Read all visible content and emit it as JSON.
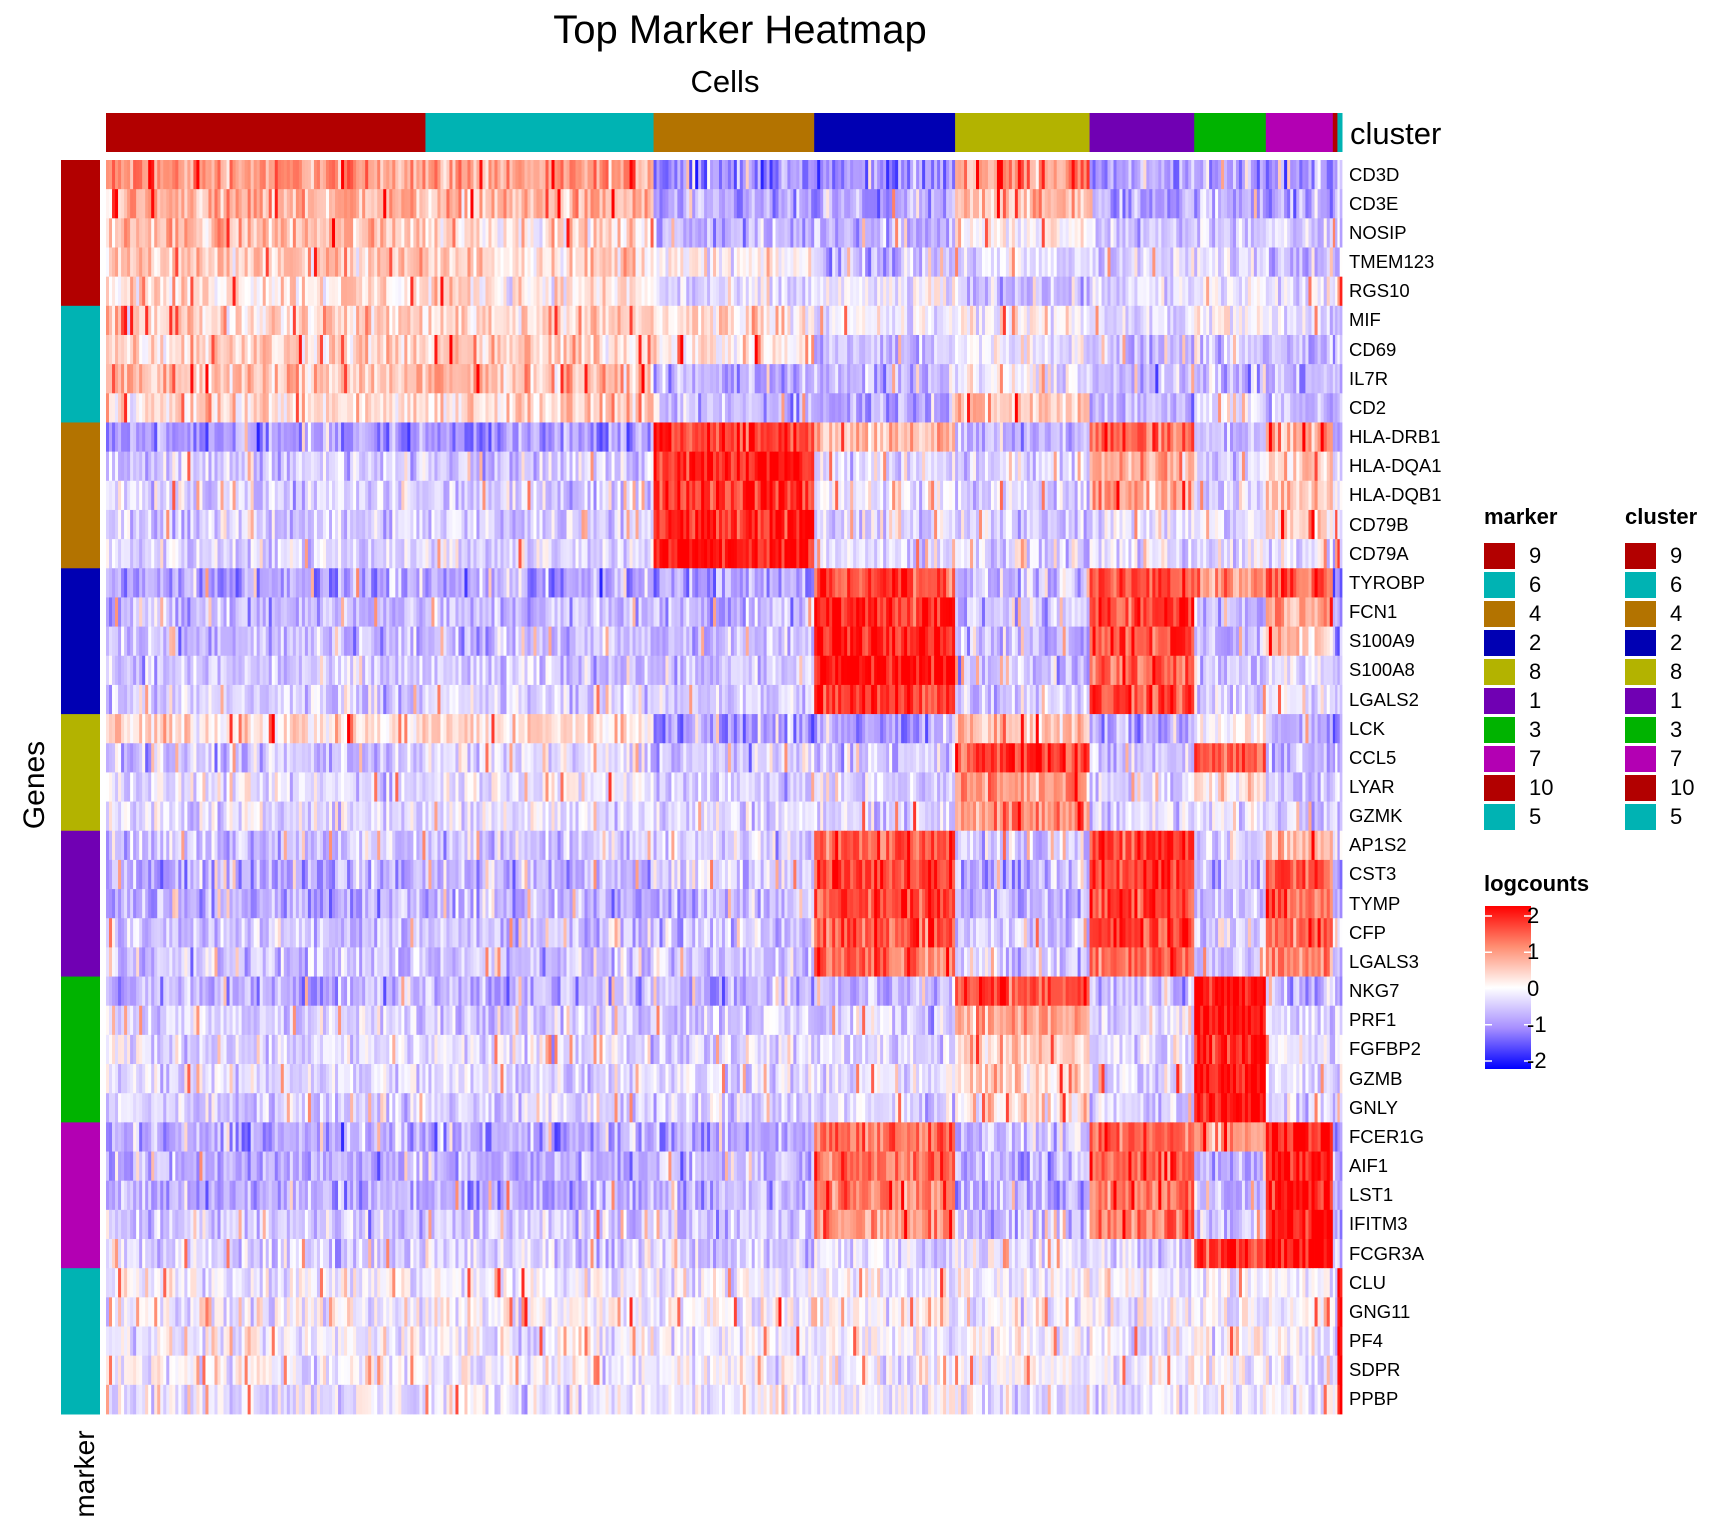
{
  "chart_data": {
    "type": "heatmap",
    "title": "Top Marker Heatmap",
    "xlabel": "Cells",
    "ylabel": "Genes",
    "column_annotation_label": "cluster",
    "row_annotation_label": "marker",
    "value_label": "logcounts",
    "value_range": [
      -2,
      2
    ],
    "color_scale": {
      "-2": "#0000FF",
      "-1": "#A68EFF",
      "0": "#FFFFFF",
      "1": "#FF8E72",
      "2": "#FF0000"
    },
    "clusters": [
      {
        "id": "9",
        "color": "#B20000",
        "cells": 696
      },
      {
        "id": "6",
        "color": "#00B3B3",
        "cells": 497
      },
      {
        "id": "4",
        "color": "#B37300",
        "cells": 350
      },
      {
        "id": "2",
        "color": "#0000B3",
        "cells": 307
      },
      {
        "id": "8",
        "color": "#B3B300",
        "cells": 293
      },
      {
        "id": "1",
        "color": "#7000B3",
        "cells": 228
      },
      {
        "id": "3",
        "color": "#00B300",
        "cells": 156
      },
      {
        "id": "7",
        "color": "#B300B3",
        "cells": 146
      },
      {
        "id": "10",
        "color": "#B20000",
        "cells": 10
      },
      {
        "id": "5",
        "color": "#00B3B3",
        "cells": 10
      }
    ],
    "genes": [
      {
        "name": "CD3D",
        "marker": "9",
        "mean": [
          0.9,
          0.8,
          -1.0,
          -1.0,
          0.9,
          -0.9,
          -0.8,
          -1.0,
          -1.0,
          -0.6
        ]
      },
      {
        "name": "CD3E",
        "marker": "9",
        "mean": [
          0.7,
          0.6,
          -0.9,
          -0.9,
          0.6,
          -0.8,
          -0.6,
          -0.9,
          -0.9,
          -0.6
        ]
      },
      {
        "name": "NOSIP",
        "marker": "9",
        "mean": [
          0.6,
          0.3,
          -0.7,
          -0.6,
          0.0,
          -0.5,
          -0.4,
          -0.5,
          -0.5,
          -0.5
        ]
      },
      {
        "name": "TMEM123",
        "marker": "9",
        "mean": [
          0.5,
          0.4,
          0.0,
          -0.6,
          -0.3,
          -0.4,
          -0.3,
          -0.5,
          -0.5,
          -0.5
        ]
      },
      {
        "name": "RGS10",
        "marker": "9",
        "mean": [
          0.3,
          0.2,
          -0.4,
          -0.2,
          -0.5,
          -0.3,
          -0.2,
          -0.3,
          -0.3,
          1.5
        ]
      },
      {
        "name": "MIF",
        "marker": "6",
        "mean": [
          0.4,
          0.4,
          0.3,
          -0.2,
          0.0,
          -0.3,
          0.0,
          -0.3,
          -0.3,
          -0.3
        ]
      },
      {
        "name": "CD69",
        "marker": "6",
        "mean": [
          0.4,
          0.4,
          0.2,
          -0.6,
          -0.1,
          -0.6,
          -0.5,
          -0.6,
          -0.6,
          -0.6
        ]
      },
      {
        "name": "IL7R",
        "marker": "6",
        "mean": [
          0.5,
          0.6,
          -0.7,
          -0.7,
          -0.1,
          -0.7,
          -0.7,
          -0.7,
          -0.7,
          -0.7
        ]
      },
      {
        "name": "CD2",
        "marker": "6",
        "mean": [
          0.3,
          0.4,
          -0.6,
          -0.7,
          0.5,
          -0.6,
          -0.2,
          -0.6,
          -0.6,
          -0.6
        ]
      },
      {
        "name": "HLA-DRB1",
        "marker": "4",
        "mean": [
          -0.9,
          -0.9,
          1.6,
          0.6,
          -0.6,
          1.3,
          -0.6,
          0.9,
          -0.7,
          -0.7
        ]
      },
      {
        "name": "HLA-DQA1",
        "marker": "4",
        "mean": [
          -0.4,
          -0.4,
          1.8,
          -0.3,
          -0.4,
          0.7,
          -0.4,
          0.4,
          -0.4,
          -0.4
        ]
      },
      {
        "name": "HLA-DQB1",
        "marker": "4",
        "mean": [
          -0.4,
          -0.4,
          1.7,
          -0.2,
          -0.4,
          0.8,
          -0.4,
          0.5,
          -0.4,
          -0.4
        ]
      },
      {
        "name": "CD79B",
        "marker": "4",
        "mean": [
          -0.4,
          -0.4,
          1.8,
          -0.4,
          -0.4,
          -0.2,
          -0.3,
          0.4,
          -0.4,
          -0.4
        ]
      },
      {
        "name": "CD79A",
        "marker": "4",
        "mean": [
          -0.3,
          -0.3,
          1.9,
          -0.3,
          -0.3,
          -0.3,
          -0.3,
          -0.3,
          -0.3,
          -0.3
        ]
      },
      {
        "name": "TYROBP",
        "marker": "2",
        "mean": [
          -0.9,
          -0.9,
          -0.8,
          1.5,
          -0.6,
          1.5,
          0.9,
          1.4,
          -0.8,
          -0.8
        ]
      },
      {
        "name": "FCN1",
        "marker": "2",
        "mean": [
          -0.6,
          -0.6,
          -0.6,
          1.7,
          -0.6,
          1.6,
          -0.6,
          0.8,
          -0.6,
          -0.6
        ]
      },
      {
        "name": "S100A9",
        "marker": "2",
        "mean": [
          -0.6,
          -0.6,
          -0.6,
          1.9,
          -0.6,
          1.5,
          -0.6,
          0.4,
          -0.6,
          -0.6
        ]
      },
      {
        "name": "S100A8",
        "marker": "2",
        "mean": [
          -0.5,
          -0.5,
          -0.5,
          1.9,
          -0.5,
          1.3,
          -0.5,
          -0.2,
          -0.5,
          -0.5
        ]
      },
      {
        "name": "LGALS2",
        "marker": "2",
        "mean": [
          -0.4,
          -0.4,
          -0.4,
          1.6,
          -0.4,
          1.5,
          -0.4,
          -0.3,
          -0.4,
          -0.4
        ]
      },
      {
        "name": "LCK",
        "marker": "8",
        "mean": [
          0.3,
          0.3,
          -0.9,
          -0.9,
          0.5,
          -0.8,
          0.0,
          -0.8,
          -0.8,
          -0.8
        ]
      },
      {
        "name": "CCL5",
        "marker": "8",
        "mean": [
          -0.5,
          -0.3,
          -0.5,
          -0.5,
          1.6,
          -0.5,
          1.4,
          -0.5,
          -0.5,
          -0.5
        ]
      },
      {
        "name": "LYAR",
        "marker": "8",
        "mean": [
          -0.3,
          -0.1,
          -0.4,
          -0.4,
          0.9,
          -0.4,
          0.3,
          -0.4,
          -0.4,
          -0.4
        ]
      },
      {
        "name": "GZMK",
        "marker": "8",
        "mean": [
          -0.3,
          -0.2,
          -0.3,
          -0.3,
          1.0,
          -0.3,
          -0.2,
          -0.3,
          -0.3,
          -0.3
        ]
      },
      {
        "name": "AP1S2",
        "marker": "1",
        "mean": [
          -0.5,
          -0.5,
          -0.4,
          1.3,
          -0.5,
          1.6,
          -0.4,
          0.7,
          -0.5,
          -0.5
        ]
      },
      {
        "name": "CST3",
        "marker": "1",
        "mean": [
          -0.7,
          -0.7,
          -0.3,
          1.5,
          -0.7,
          1.7,
          -0.6,
          1.4,
          -0.7,
          -0.7
        ]
      },
      {
        "name": "TYMP",
        "marker": "1",
        "mean": [
          -0.7,
          -0.7,
          -0.6,
          1.5,
          -0.6,
          1.6,
          -0.5,
          1.3,
          -0.7,
          -0.7
        ]
      },
      {
        "name": "CFP",
        "marker": "1",
        "mean": [
          -0.5,
          -0.5,
          -0.5,
          1.3,
          -0.5,
          1.5,
          -0.5,
          1.2,
          -0.5,
          -0.5
        ]
      },
      {
        "name": "LGALS3",
        "marker": "1",
        "mean": [
          -0.5,
          -0.5,
          -0.5,
          1.3,
          -0.5,
          1.3,
          -0.5,
          1.0,
          -0.5,
          -0.5
        ]
      },
      {
        "name": "NKG7",
        "marker": "3",
        "mean": [
          -0.7,
          -0.7,
          -0.7,
          -0.6,
          1.5,
          -0.6,
          2.0,
          -0.6,
          -0.7,
          -0.7
        ]
      },
      {
        "name": "PRF1",
        "marker": "3",
        "mean": [
          -0.4,
          -0.4,
          -0.4,
          -0.4,
          0.8,
          -0.4,
          1.9,
          -0.4,
          -0.4,
          -0.4
        ]
      },
      {
        "name": "FGFBP2",
        "marker": "3",
        "mean": [
          -0.3,
          -0.3,
          -0.3,
          -0.3,
          0.4,
          -0.3,
          1.9,
          -0.3,
          -0.3,
          -0.3
        ]
      },
      {
        "name": "GZMB",
        "marker": "3",
        "mean": [
          -0.3,
          -0.3,
          -0.3,
          -0.3,
          0.4,
          -0.3,
          1.9,
          -0.3,
          -0.3,
          -0.3
        ]
      },
      {
        "name": "GNLY",
        "marker": "3",
        "mean": [
          -0.4,
          -0.4,
          -0.4,
          -0.4,
          0.3,
          -0.4,
          1.9,
          -0.4,
          -0.4,
          -0.4
        ]
      },
      {
        "name": "FCER1G",
        "marker": "7",
        "mean": [
          -0.8,
          -0.8,
          -0.8,
          1.3,
          -0.6,
          1.3,
          1.0,
          1.9,
          -0.8,
          -0.8
        ]
      },
      {
        "name": "AIF1",
        "marker": "7",
        "mean": [
          -0.7,
          -0.7,
          -0.6,
          1.3,
          -0.7,
          1.4,
          -0.7,
          1.9,
          -0.7,
          -0.7
        ]
      },
      {
        "name": "LST1",
        "marker": "7",
        "mean": [
          -0.7,
          -0.7,
          -0.6,
          1.2,
          -0.7,
          1.2,
          -0.7,
          1.9,
          -0.7,
          -0.7
        ]
      },
      {
        "name": "IFITM3",
        "marker": "7",
        "mean": [
          -0.5,
          -0.5,
          -0.5,
          0.9,
          -0.5,
          1.2,
          -0.5,
          1.8,
          -0.5,
          -0.5
        ]
      },
      {
        "name": "FCGR3A",
        "marker": "7",
        "mean": [
          -0.4,
          -0.4,
          -0.4,
          -0.3,
          -0.2,
          -0.3,
          1.6,
          1.9,
          -0.4,
          -0.4
        ]
      },
      {
        "name": "CLU",
        "marker": "5",
        "mean": [
          -0.1,
          -0.1,
          -0.1,
          -0.1,
          -0.1,
          -0.1,
          -0.1,
          -0.1,
          -0.1,
          2.0
        ]
      },
      {
        "name": "GNG11",
        "marker": "5",
        "mean": [
          -0.1,
          -0.1,
          -0.1,
          -0.1,
          -0.1,
          -0.1,
          -0.1,
          -0.1,
          -0.1,
          2.0
        ]
      },
      {
        "name": "PF4",
        "marker": "5",
        "mean": [
          -0.1,
          -0.1,
          -0.1,
          -0.1,
          -0.1,
          -0.1,
          -0.1,
          -0.1,
          -0.1,
          2.0
        ]
      },
      {
        "name": "SDPR",
        "marker": "5",
        "mean": [
          -0.1,
          -0.1,
          -0.1,
          -0.1,
          -0.1,
          -0.1,
          -0.1,
          -0.1,
          -0.1,
          2.0
        ]
      },
      {
        "name": "PPBP",
        "marker": "5",
        "mean": [
          -0.2,
          -0.2,
          -0.2,
          -0.2,
          -0.2,
          -0.2,
          -0.2,
          -0.2,
          -0.2,
          2.0
        ]
      }
    ]
  },
  "legends": {
    "marker": {
      "title": "marker",
      "items": [
        {
          "label": "9",
          "color": "#B20000"
        },
        {
          "label": "6",
          "color": "#00B3B3"
        },
        {
          "label": "4",
          "color": "#B37300"
        },
        {
          "label": "2",
          "color": "#0000B3"
        },
        {
          "label": "8",
          "color": "#B3B300"
        },
        {
          "label": "1",
          "color": "#7000B3"
        },
        {
          "label": "3",
          "color": "#00B300"
        },
        {
          "label": "7",
          "color": "#B300B3"
        },
        {
          "label": "10",
          "color": "#B20000"
        },
        {
          "label": "5",
          "color": "#00B3B3"
        }
      ]
    },
    "cluster": {
      "title": "cluster",
      "items": [
        {
          "label": "9",
          "color": "#B20000"
        },
        {
          "label": "6",
          "color": "#00B3B3"
        },
        {
          "label": "4",
          "color": "#B37300"
        },
        {
          "label": "2",
          "color": "#0000B3"
        },
        {
          "label": "8",
          "color": "#B3B300"
        },
        {
          "label": "1",
          "color": "#7000B3"
        },
        {
          "label": "3",
          "color": "#00B300"
        },
        {
          "label": "7",
          "color": "#B300B3"
        },
        {
          "label": "10",
          "color": "#B20000"
        },
        {
          "label": "5",
          "color": "#00B3B3"
        }
      ]
    },
    "logcounts": {
      "title": "logcounts",
      "ticks": [
        "2",
        "1",
        "0",
        "-1",
        "-2"
      ]
    }
  }
}
